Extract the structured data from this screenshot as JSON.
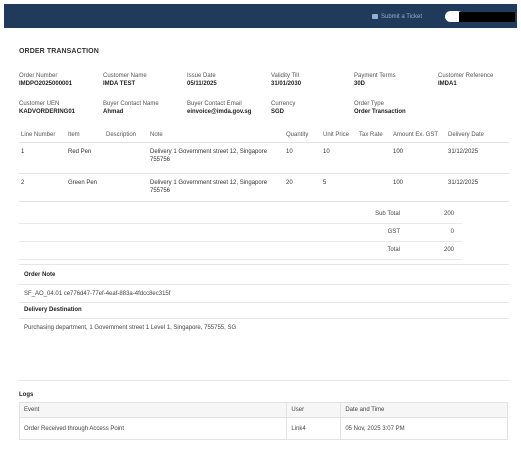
{
  "topbar": {
    "submit_ticket_label": "Submit a Ticket",
    "ticket_icon": "ticket-icon",
    "colors": {
      "bar": "#1f3a5a",
      "link": "#8fb0d6"
    }
  },
  "page": {
    "title": "ORDER TRANSACTION"
  },
  "details": {
    "order_number": {
      "label": "Order Number",
      "value": "IMDPO2025000001"
    },
    "customer_name": {
      "label": "Customer Name",
      "value": "IMDA TEST"
    },
    "issue_date": {
      "label": "Issue Date",
      "value": "05/11/2025"
    },
    "validity_till": {
      "label": "Validity Till",
      "value": "31/01/2030"
    },
    "payment_terms": {
      "label": "Payment Terms",
      "value": "30D"
    },
    "customer_reference": {
      "label": "Customer Reference",
      "value": "IMDA1"
    },
    "customer_uen": {
      "label": "Customer UEN",
      "value": "KADVORDERING01"
    },
    "buyer_contact_name": {
      "label": "Buyer Contact Name",
      "value": "Ahmad"
    },
    "buyer_contact_email": {
      "label": "Buyer Contact Email",
      "value": "einvoice@imda.gov.sg"
    },
    "currency": {
      "label": "Currency",
      "value": "SGD"
    },
    "order_type": {
      "label": "Order Type",
      "value": "Order Transaction"
    }
  },
  "items": {
    "headers": {
      "line_number": "Line Number",
      "item": "Item",
      "description": "Description",
      "note": "Note",
      "quantity": "Quantity",
      "unit_price": "Unit Price",
      "tax_rate": "Tax Rate",
      "amount_ex_gst": "Amount Ex. GST",
      "delivery_date": "Delivery Date"
    },
    "rows": [
      {
        "line_number": "1",
        "item": "Red Pen",
        "description": "",
        "note": "Delivery 1 Government street 12, Singapore 755756",
        "quantity": "10",
        "unit_price": "10",
        "tax_rate": "",
        "amount_ex_gst": "100",
        "delivery_date": "31/12/2025"
      },
      {
        "line_number": "2",
        "item": "Green Pen",
        "description": "",
        "note": "Delivery 1 Government street 12, Singapore 755756",
        "quantity": "20",
        "unit_price": "5",
        "tax_rate": "",
        "amount_ex_gst": "100",
        "delivery_date": "31/12/2025"
      }
    ]
  },
  "totals": {
    "sub_total": {
      "label": "Sub Total",
      "value": "200"
    },
    "gst": {
      "label": "GST",
      "value": "0"
    },
    "total": {
      "label": "Total",
      "value": "200"
    }
  },
  "order_note": {
    "title": "Order Note",
    "text": "SF_AO_04.01 ce776d47-77ef-4eaf-883a-4fdcc8ec315f"
  },
  "delivery_destination": {
    "title": "Delivery Destination",
    "text": "Purchasing department, 1 Government street 1 Level 1, Singapore, 755755, SG"
  },
  "logs": {
    "title": "Logs",
    "headers": {
      "event": "Event",
      "user": "User",
      "date_time": "Date and Time"
    },
    "rows": [
      {
        "event": "Order Received through Access Point",
        "user": "Link4",
        "date_time": "05 Nov, 2025 3:07 PM"
      }
    ]
  }
}
